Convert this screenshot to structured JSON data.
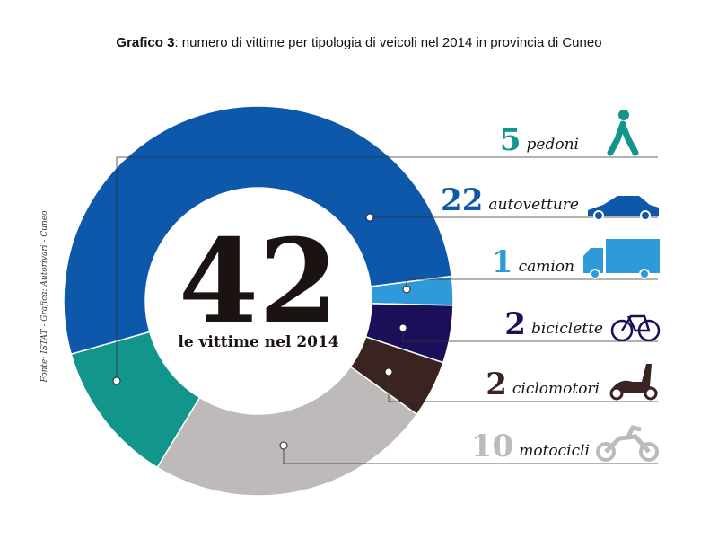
{
  "chart_data": {
    "type": "donut",
    "title_label": "Grafico 3",
    "title": ": numero di vittime per tipologia di veicoli nel 2014 in provincia di Cuneo",
    "center_value": 42,
    "center_label": "le vittime nel 2014",
    "source": "Fonte: ISTAT - Grafica: Autorivari - Cuneo",
    "categories": [
      "pedoni",
      "autovetture",
      "camion",
      "biciclette",
      "ciclomotori",
      "motocicli"
    ],
    "values": [
      5,
      22,
      1,
      2,
      2,
      10
    ],
    "colors": [
      "#12968b",
      "#0d58aa",
      "#2e9ad9",
      "#1b0f5a",
      "#3a2422",
      "#bfbaba"
    ]
  }
}
